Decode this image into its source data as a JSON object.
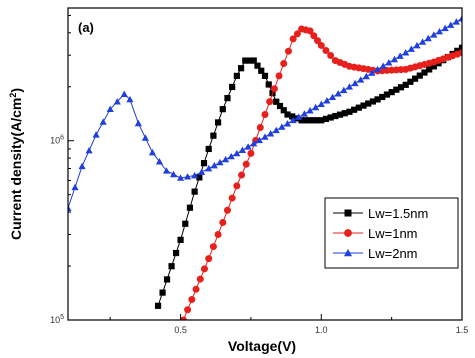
{
  "chart_data": {
    "type": "line",
    "panel_label": "(a)",
    "xlabel": "Voltage(V)",
    "ylabel": "Current density(A/cm",
    "ylabel_sup": "2",
    "ylabel_close": ")",
    "xlim": [
      0.1,
      1.5
    ],
    "ylim": [
      100000,
      5500000
    ],
    "yscale": "log",
    "x_ticks": [
      0.5,
      1.0,
      1.5
    ],
    "x_tick_labels": [
      "0.5",
      "1.0",
      "1.5"
    ],
    "y_ticks": [
      100000,
      1000000
    ],
    "y_tick_base": "10",
    "y_tick_exps": [
      "5",
      "6"
    ],
    "grid": false,
    "legend_position": "lower-right",
    "series": [
      {
        "name": "Lw=1.5nm",
        "marker": "square",
        "color": "#000000",
        "x": [
          0.42,
          0.5,
          0.55,
          0.6,
          0.65,
          0.7,
          0.73,
          0.76,
          0.8,
          0.84,
          0.88,
          0.93,
          1.0,
          1.1,
          1.2,
          1.3,
          1.4,
          1.5
        ],
        "y": [
          120000,
          280000,
          520000,
          900000,
          1500000,
          2300000,
          2800000,
          2800000,
          2300000,
          1650000,
          1400000,
          1300000,
          1300000,
          1450000,
          1700000,
          2050000,
          2600000,
          3300000
        ]
      },
      {
        "name": "Lw=1nm",
        "marker": "circle",
        "color": "#e8201c",
        "x": [
          0.51,
          0.6,
          0.65,
          0.7,
          0.75,
          0.8,
          0.85,
          0.9,
          0.93,
          0.96,
          1.0,
          1.05,
          1.1,
          1.2,
          1.3,
          1.4,
          1.5
        ],
        "y": [
          100000,
          220000,
          350000,
          560000,
          850000,
          1400000,
          2300000,
          3700000,
          4200000,
          4100000,
          3400000,
          2800000,
          2600000,
          2450000,
          2500000,
          2750000,
          3100000
        ]
      },
      {
        "name": "Lw=2nm",
        "marker": "triangle",
        "color": "#1f3fde",
        "x": [
          0.1,
          0.15,
          0.2,
          0.25,
          0.3,
          0.32,
          0.35,
          0.4,
          0.45,
          0.5,
          0.55,
          0.6,
          0.7,
          0.8,
          0.9,
          1.0,
          1.1,
          1.2,
          1.3,
          1.4,
          1.5
        ],
        "y": [
          420000,
          720000,
          1080000,
          1500000,
          1820000,
          1700000,
          1250000,
          860000,
          680000,
          620000,
          640000,
          700000,
          850000,
          1050000,
          1300000,
          1600000,
          2000000,
          2500000,
          3100000,
          3900000,
          4800000
        ]
      }
    ]
  }
}
